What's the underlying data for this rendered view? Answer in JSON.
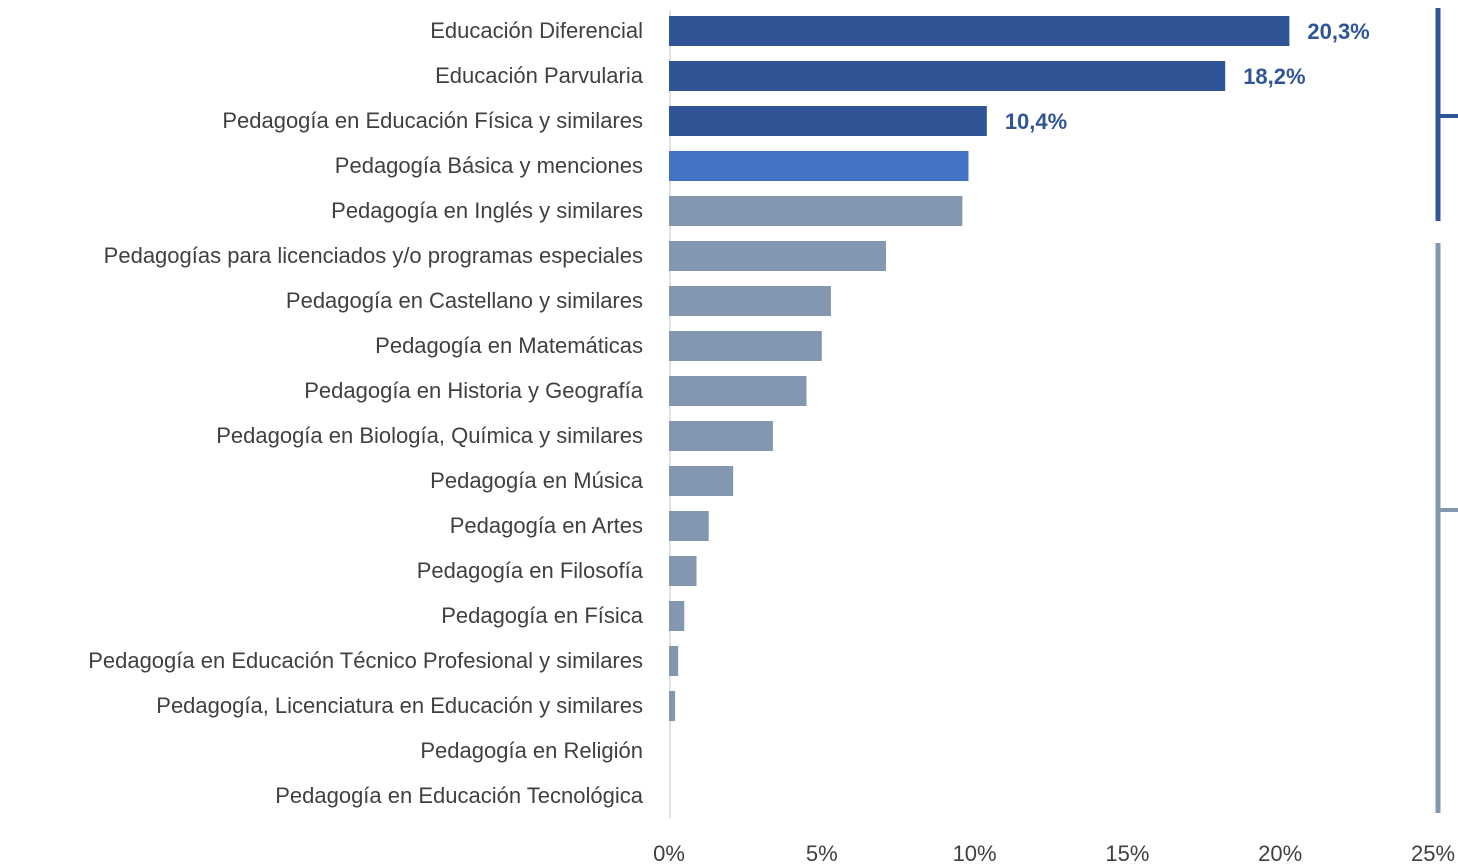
{
  "chart_data": {
    "type": "barh",
    "categories": [
      "Educación Diferencial",
      "Educación Parvularia",
      "Pedagogía en Educación Física y similares",
      "Pedagogía Básica y menciones",
      "Pedagogía en Inglés y similares",
      "Pedagogías para licenciados y/o programas especiales",
      "Pedagogía en Castellano y similares",
      "Pedagogía en Matemáticas",
      "Pedagogía en Historia y Geografía",
      "Pedagogía en Biología, Química y similares",
      "Pedagogía en Música",
      "Pedagogía en Artes",
      "Pedagogía en Filosofía",
      "Pedagogía en Física",
      "Pedagogía en Educación Técnico Profesional y similares",
      "Pedagogía, Licenciatura en Educación y similares",
      "Pedagogía en Religión",
      "Pedagogía en Educación Tecnológica"
    ],
    "values": [
      20.3,
      18.2,
      10.4,
      9.8,
      9.6,
      7.1,
      5.3,
      5.0,
      4.5,
      3.4,
      2.1,
      1.3,
      0.9,
      0.5,
      0.3,
      0.2,
      0,
      0
    ],
    "value_labels": [
      "20,3%",
      "18,2%",
      "10,4%",
      null,
      null,
      null,
      null,
      null,
      null,
      null,
      null,
      null,
      null,
      null,
      null,
      null,
      null,
      null
    ],
    "colors": [
      "#2F5597",
      "#2F5597",
      "#2F5597",
      "#4472C4",
      "#8497B0",
      "#8497B0",
      "#8497B0",
      "#8497B0",
      "#8497B0",
      "#8497B0",
      "#8497B0",
      "#8497B0",
      "#8497B0",
      "#8497B0",
      "#8497B0",
      "#8497B0",
      "#8497B0",
      "#8497B0"
    ],
    "xlim": [
      0,
      25
    ],
    "xticks": [
      {
        "value": 0,
        "label": "0%"
      },
      {
        "value": 5,
        "label": "5%"
      },
      {
        "value": 10,
        "label": "10%"
      },
      {
        "value": 15,
        "label": "15%"
      },
      {
        "value": 20,
        "label": "20%"
      },
      {
        "value": 25,
        "label": "25%"
      }
    ],
    "grid": false
  }
}
